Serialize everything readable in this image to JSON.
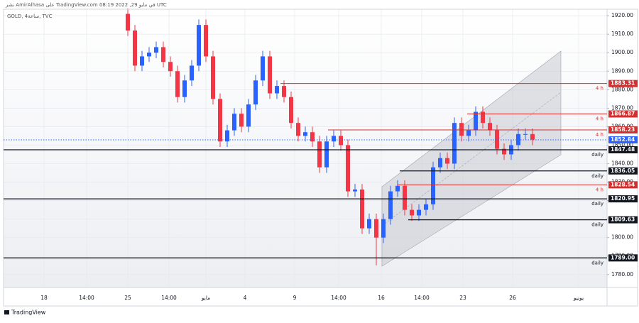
{
  "chart_data": {
    "type": "candlestick",
    "published": "نشر AmirAlhasa على TradingView.com في مايو 29, 2022 08:19 UTC",
    "symbol": "GOLD, 4ساعة, TVC",
    "brand": "TradingView",
    "open": [
      1921,
      1912,
      1893,
      1898,
      1900,
      1903,
      1895,
      1890,
      1876,
      1885,
      1893,
      1915,
      1898,
      1875,
      1852,
      1858,
      1867,
      1860,
      1872,
      1885,
      1898,
      1878,
      1882,
      1876,
      1862,
      1855,
      1857,
      1852,
      1838,
      1852,
      1855,
      1850,
      1825,
      1826,
      1805,
      1810,
      1800,
      1810,
      1825,
      1828,
      1815,
      1812,
      1815,
      1818,
      1838,
      1843,
      1840,
      1862,
      1855,
      1858,
      1868,
      1862,
      1858,
      1848,
      1845,
      1850,
      1856,
      1856
    ],
    "high": [
      1924,
      1915,
      1901,
      1903,
      1906,
      1906,
      1898,
      1893,
      1888,
      1896,
      1918,
      1918,
      1901,
      1878,
      1861,
      1870,
      1870,
      1875,
      1888,
      1901,
      1901,
      1885,
      1885,
      1879,
      1865,
      1860,
      1860,
      1855,
      1855,
      1858,
      1858,
      1853,
      1829,
      1829,
      1813,
      1813,
      1813,
      1828,
      1831,
      1831,
      1818,
      1818,
      1821,
      1841,
      1846,
      1846,
      1865,
      1865,
      1861,
      1871,
      1871,
      1865,
      1861,
      1851,
      1853,
      1859,
      1859,
      1859
    ],
    "low": [
      1909,
      1890,
      1890,
      1895,
      1897,
      1892,
      1887,
      1873,
      1873,
      1882,
      1890,
      1895,
      1872,
      1849,
      1849,
      1855,
      1857,
      1857,
      1869,
      1882,
      1875,
      1875,
      1873,
      1859,
      1852,
      1852,
      1849,
      1835,
      1835,
      1849,
      1847,
      1822,
      1822,
      1802,
      1802,
      1785,
      1797,
      1807,
      1822,
      1812,
      1809,
      1809,
      1812,
      1815,
      1835,
      1837,
      1837,
      1852,
      1852,
      1855,
      1859,
      1855,
      1845,
      1842,
      1842,
      1847,
      1853,
      1850
    ],
    "close": [
      1912,
      1893,
      1898,
      1900,
      1903,
      1895,
      1890,
      1876,
      1885,
      1893,
      1915,
      1898,
      1875,
      1852,
      1858,
      1867,
      1860,
      1872,
      1885,
      1898,
      1878,
      1882,
      1876,
      1862,
      1855,
      1857,
      1852,
      1838,
      1852,
      1855,
      1850,
      1825,
      1826,
      1805,
      1810,
      1800,
      1810,
      1825,
      1828,
      1815,
      1812,
      1815,
      1818,
      1838,
      1843,
      1840,
      1862,
      1855,
      1858,
      1868,
      1862,
      1858,
      1848,
      1845,
      1850,
      1856,
      1856,
      1853
    ],
    "up_color": "#2962ff",
    "down_color": "#f23645",
    "xlim": [
      -17.5,
      67.5
    ],
    "xticks": [
      {
        "value": -11.8,
        "label": "18"
      },
      {
        "value": -5.8,
        "label": "14:00"
      },
      {
        "value": 0,
        "label": "25"
      },
      {
        "value": 5.8,
        "label": "14:00"
      },
      {
        "value": 11,
        "label": "مايو"
      },
      {
        "value": 16.5,
        "label": "4"
      },
      {
        "value": 23.5,
        "label": "9"
      },
      {
        "value": 29.7,
        "label": "14:00"
      },
      {
        "value": 35.7,
        "label": "16"
      },
      {
        "value": 41.4,
        "label": "14:00"
      },
      {
        "value": 47.2,
        "label": "23"
      },
      {
        "value": 54.2,
        "label": "26"
      },
      {
        "value": 63.5,
        "label": "يونيو"
      }
    ],
    "ylim": [
      1773,
      1923.5
    ],
    "yticks": [
      {
        "value": 1780,
        "label": "1780.00"
      },
      {
        "value": 1790,
        "label": "1790.00"
      },
      {
        "value": 1800,
        "label": "1800.00"
      },
      {
        "value": 1810,
        "label": "1810.00"
      },
      {
        "value": 1820,
        "label": "1820.00"
      },
      {
        "value": 1830,
        "label": "1830.00"
      },
      {
        "value": 1840,
        "label": "1840.00"
      },
      {
        "value": 1850,
        "label": "1850.00"
      },
      {
        "value": 1860,
        "label": "1860.00"
      },
      {
        "value": 1870,
        "label": "1870.00"
      },
      {
        "value": 1880,
        "label": "1880.00"
      },
      {
        "value": 1890,
        "label": "1890.00"
      },
      {
        "value": 1900,
        "label": "1900.00"
      },
      {
        "value": 1910,
        "label": "1910.00"
      },
      {
        "value": 1920,
        "label": "1920.00"
      }
    ],
    "grid": true,
    "levels": [
      {
        "value": 1883.31,
        "tag": "4 h",
        "color": "#d32f2f"
      },
      {
        "value": 1866.87,
        "tag": "4 h",
        "color": "#d32f2f"
      },
      {
        "value": 1858.23,
        "tag": "4 h",
        "color": "#d32f2f"
      },
      {
        "value": 1847.48,
        "tag": "daily",
        "color": "#131722"
      },
      {
        "value": 1836.05,
        "tag": "daily",
        "color": "#131722"
      },
      {
        "value": 1828.54,
        "tag": "4 h",
        "color": "#d32f2f"
      },
      {
        "value": 1820.95,
        "tag": "daily",
        "color": "#131722"
      },
      {
        "value": 1809.63,
        "tag": "daily",
        "color": "#131722"
      },
      {
        "value": 1789,
        "label": "1789.00",
        "tag": "daily",
        "color": "#131722"
      }
    ],
    "current_price": {
      "value": 1852.84,
      "color": "#2962ff"
    }
  }
}
